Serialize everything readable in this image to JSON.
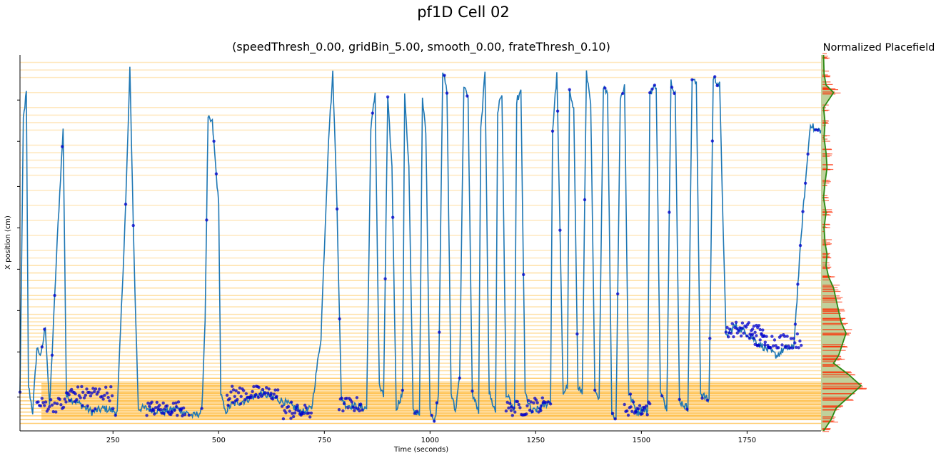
{
  "chart_data": {
    "type": "line",
    "suptitle": "pf1D Cell 02",
    "title": "(speedThresh_0.00, gridBin_5.00, smooth_0.00, frateThresh_0.10)",
    "xlabel": "Time (seconds)",
    "ylabel": "X position (cm)",
    "xlim": [
      30,
      1925
    ],
    "x_ticks": [
      250,
      500,
      750,
      1000,
      1250,
      1500,
      1750
    ],
    "x_tick_labels": [
      "250",
      "500",
      "750",
      "1000",
      "1250",
      "1500",
      "1750"
    ],
    "ylim": [
      0,
      1
    ],
    "y_ticks": [
      0.09,
      0.21,
      0.32,
      0.43,
      0.54,
      0.65,
      0.77,
      0.88
    ],
    "grid": false,
    "legend": "none",
    "colors": {
      "trajectory": "#1f77b4",
      "spikes": "#0000cc",
      "spike_lines": "#ffa500",
      "placefield_fill": "#b5c98a",
      "placefield_line": "#2a8a12",
      "placefield_spikes": "#ff2a00"
    },
    "trajectory": {
      "keyframes": [
        [
          30,
          0.1
        ],
        [
          38,
          0.83
        ],
        [
          45,
          0.9
        ],
        [
          50,
          0.12
        ],
        [
          60,
          0.05
        ],
        [
          70,
          0.22
        ],
        [
          80,
          0.2
        ],
        [
          90,
          0.28
        ],
        [
          100,
          0.06
        ],
        [
          120,
          0.55
        ],
        [
          132,
          0.8
        ],
        [
          140,
          0.09
        ],
        [
          160,
          0.08
        ],
        [
          200,
          0.05
        ],
        [
          230,
          0.06
        ],
        [
          260,
          0.05
        ],
        [
          280,
          0.6
        ],
        [
          290,
          0.96
        ],
        [
          300,
          0.45
        ],
        [
          310,
          0.06
        ],
        [
          330,
          0.06
        ],
        [
          370,
          0.05
        ],
        [
          400,
          0.06
        ],
        [
          440,
          0.04
        ],
        [
          460,
          0.05
        ],
        [
          468,
          0.3
        ],
        [
          475,
          0.83
        ],
        [
          485,
          0.82
        ],
        [
          500,
          0.6
        ],
        [
          505,
          0.1
        ],
        [
          515,
          0.05
        ],
        [
          530,
          0.07
        ],
        [
          560,
          0.08
        ],
        [
          600,
          0.1
        ],
        [
          650,
          0.08
        ],
        [
          700,
          0.05
        ],
        [
          720,
          0.06
        ],
        [
          742,
          0.25
        ],
        [
          760,
          0.78
        ],
        [
          770,
          0.95
        ],
        [
          780,
          0.6
        ],
        [
          790,
          0.09
        ],
        [
          800,
          0.07
        ],
        [
          850,
          0.06
        ],
        [
          860,
          0.8
        ],
        [
          870,
          0.9
        ],
        [
          880,
          0.12
        ],
        [
          890,
          0.09
        ],
        [
          900,
          0.88
        ],
        [
          910,
          0.7
        ],
        [
          920,
          0.06
        ],
        [
          935,
          0.1
        ],
        [
          940,
          0.9
        ],
        [
          950,
          0.7
        ],
        [
          960,
          0.05
        ],
        [
          975,
          0.05
        ],
        [
          982,
          0.88
        ],
        [
          990,
          0.8
        ],
        [
          1000,
          0.06
        ],
        [
          1010,
          0.02
        ],
        [
          1020,
          0.1
        ],
        [
          1030,
          0.96
        ],
        [
          1040,
          0.9
        ],
        [
          1050,
          0.1
        ],
        [
          1060,
          0.05
        ],
        [
          1070,
          0.15
        ],
        [
          1080,
          0.92
        ],
        [
          1090,
          0.88
        ],
        [
          1100,
          0.1
        ],
        [
          1115,
          0.05
        ],
        [
          1120,
          0.8
        ],
        [
          1130,
          0.95
        ],
        [
          1140,
          0.1
        ],
        [
          1155,
          0.05
        ],
        [
          1160,
          0.85
        ],
        [
          1170,
          0.9
        ],
        [
          1180,
          0.1
        ],
        [
          1200,
          0.05
        ],
        [
          1205,
          0.88
        ],
        [
          1215,
          0.9
        ],
        [
          1225,
          0.1
        ],
        [
          1240,
          0.05
        ],
        [
          1260,
          0.06
        ],
        [
          1285,
          0.08
        ],
        [
          1290,
          0.8
        ],
        [
          1300,
          0.95
        ],
        [
          1315,
          0.1
        ],
        [
          1325,
          0.12
        ],
        [
          1330,
          0.9
        ],
        [
          1340,
          0.85
        ],
        [
          1350,
          0.12
        ],
        [
          1360,
          0.1
        ],
        [
          1370,
          0.95
        ],
        [
          1380,
          0.88
        ],
        [
          1390,
          0.1
        ],
        [
          1400,
          0.08
        ],
        [
          1410,
          0.92
        ],
        [
          1420,
          0.9
        ],
        [
          1430,
          0.05
        ],
        [
          1440,
          0.03
        ],
        [
          1450,
          0.88
        ],
        [
          1460,
          0.92
        ],
        [
          1470,
          0.1
        ],
        [
          1490,
          0.05
        ],
        [
          1505,
          0.06
        ],
        [
          1515,
          0.05
        ],
        [
          1520,
          0.9
        ],
        [
          1535,
          0.92
        ],
        [
          1545,
          0.1
        ],
        [
          1560,
          0.06
        ],
        [
          1570,
          0.93
        ],
        [
          1580,
          0.9
        ],
        [
          1590,
          0.08
        ],
        [
          1610,
          0.06
        ],
        [
          1620,
          0.94
        ],
        [
          1630,
          0.92
        ],
        [
          1640,
          0.1
        ],
        [
          1660,
          0.08
        ],
        [
          1670,
          0.94
        ],
        [
          1685,
          0.92
        ],
        [
          1700,
          0.25
        ],
        [
          1720,
          0.28
        ],
        [
          1750,
          0.26
        ],
        [
          1780,
          0.23
        ],
        [
          1820,
          0.2
        ],
        [
          1840,
          0.22
        ],
        [
          1860,
          0.22
        ],
        [
          1880,
          0.55
        ],
        [
          1900,
          0.82
        ],
        [
          1910,
          0.8
        ],
        [
          1925,
          0.8
        ]
      ],
      "dwell_clusters": [
        [
          70,
          140,
          0.07
        ],
        [
          140,
          250,
          0.1
        ],
        [
          330,
          420,
          0.06
        ],
        [
          520,
          640,
          0.1
        ],
        [
          650,
          720,
          0.05
        ],
        [
          785,
          840,
          0.07
        ],
        [
          1180,
          1230,
          0.06
        ],
        [
          1230,
          1270,
          0.07
        ],
        [
          1460,
          1520,
          0.06
        ],
        [
          1700,
          1790,
          0.27
        ],
        [
          1760,
          1800,
          0.24
        ],
        [
          1800,
          1880,
          0.24
        ]
      ]
    },
    "spike_positions": [
      0.02,
      0.03,
      0.04,
      0.05,
      0.06,
      0.07,
      0.08,
      0.09,
      0.1,
      0.11,
      0.12,
      0.13,
      0.14,
      0.15,
      0.16,
      0.17,
      0.18,
      0.19,
      0.2,
      0.21,
      0.22,
      0.23,
      0.24,
      0.25,
      0.26,
      0.27,
      0.28,
      0.29,
      0.3,
      0.31,
      0.33,
      0.35,
      0.36,
      0.38,
      0.4,
      0.42,
      0.44,
      0.46,
      0.48,
      0.52,
      0.56,
      0.6,
      0.64,
      0.68,
      0.7,
      0.72,
      0.74,
      0.76,
      0.8,
      0.82,
      0.84,
      0.86,
      0.9,
      0.94,
      0.96,
      0.98
    ],
    "spike_times": [
      40,
      60,
      80,
      95,
      100,
      110,
      150,
      180,
      200,
      230,
      250,
      280,
      300,
      340,
      380,
      420,
      470,
      500,
      540,
      580,
      620,
      660,
      700,
      745,
      760,
      800,
      845,
      865,
      885,
      905,
      925,
      945,
      985,
      1005,
      1035,
      1060,
      1085,
      1105,
      1125,
      1150,
      1165,
      1185,
      1210,
      1245,
      1275,
      1295,
      1320,
      1345,
      1375,
      1395,
      1415,
      1435,
      1455,
      1480,
      1500,
      1530,
      1560,
      1585,
      1620,
      1640,
      1680,
      1700,
      1730,
      1760,
      1800,
      1830,
      1860,
      1890,
      1905
    ],
    "placefield": {
      "title": "Normalized Placefield",
      "profile": [
        [
          0.0,
          0.05
        ],
        [
          0.03,
          0.2
        ],
        [
          0.06,
          0.3
        ],
        [
          0.09,
          0.55
        ],
        [
          0.12,
          0.8
        ],
        [
          0.15,
          0.55
        ],
        [
          0.18,
          0.25
        ],
        [
          0.2,
          0.35
        ],
        [
          0.22,
          0.4
        ],
        [
          0.26,
          0.5
        ],
        [
          0.29,
          0.4
        ],
        [
          0.32,
          0.35
        ],
        [
          0.35,
          0.3
        ],
        [
          0.38,
          0.25
        ],
        [
          0.41,
          0.15
        ],
        [
          0.44,
          0.1
        ],
        [
          0.47,
          0.12
        ],
        [
          0.5,
          0.08
        ],
        [
          0.54,
          0.06
        ],
        [
          0.58,
          0.1
        ],
        [
          0.62,
          0.05
        ],
        [
          0.66,
          0.08
        ],
        [
          0.7,
          0.12
        ],
        [
          0.74,
          0.1
        ],
        [
          0.78,
          0.06
        ],
        [
          0.82,
          0.08
        ],
        [
          0.86,
          0.05
        ],
        [
          0.9,
          0.25
        ],
        [
          0.92,
          0.1
        ],
        [
          0.95,
          0.06
        ],
        [
          1.0,
          0.05
        ]
      ]
    }
  }
}
